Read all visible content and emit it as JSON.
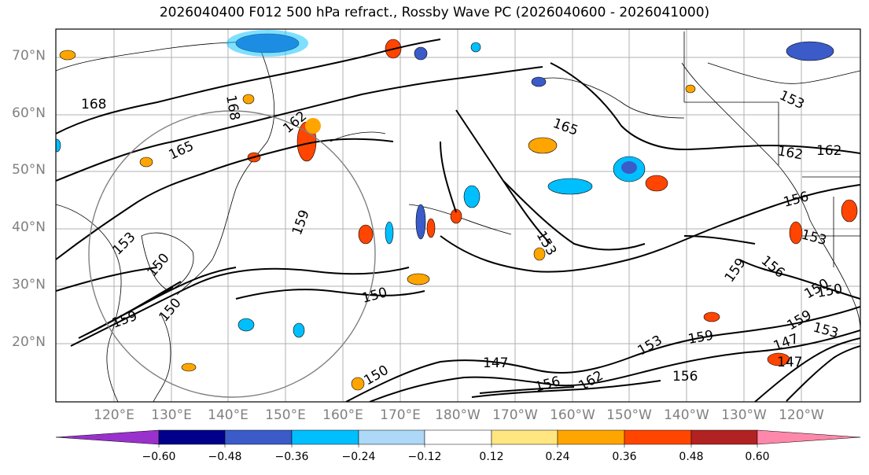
{
  "title": "2026040400 F012 500 hPa refract., Rossby Wave PC (2026040600 - 2026041000)",
  "lat_labels": [
    "70°N",
    "60°N",
    "50°N",
    "40°N",
    "30°N",
    "20°N"
  ],
  "lon_labels": [
    "120°E",
    "130°E",
    "140°E",
    "150°E",
    "160°E",
    "170°E",
    "180°W",
    "170°W",
    "160°W",
    "150°W",
    "140°W",
    "130°W",
    "120°W"
  ],
  "colorbar": {
    "ticks": [
      "−0.60",
      "−0.48",
      "−0.36",
      "−0.24",
      "−0.12",
      "0.12",
      "0.24",
      "0.36",
      "0.48",
      "0.60"
    ],
    "colors": [
      "#9932CC",
      "#00008B",
      "#3A5BC8",
      "#00BFFF",
      "#ADD8F7",
      "#FFFFFF",
      "#FFE680",
      "#FFA500",
      "#FF4500",
      "#B22222",
      "#FF88AA"
    ]
  },
  "contour_labels": [
    "168",
    "168",
    "165",
    "162",
    "165",
    "162",
    "162",
    "159",
    "153",
    "156",
    "153",
    "156",
    "153",
    "150",
    "159",
    "159",
    "153",
    "150",
    "147",
    "150",
    "147",
    "153",
    "156",
    "162",
    "159",
    "156",
    "159",
    "153",
    "150",
    "147",
    "150",
    "150"
  ]
}
